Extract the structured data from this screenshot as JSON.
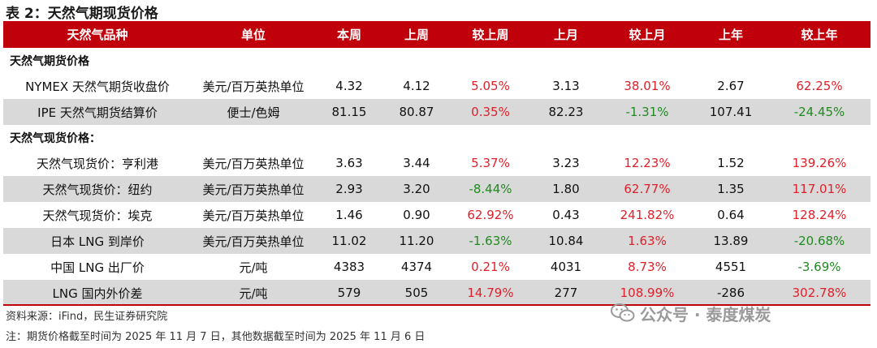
{
  "title": "表 2：天然气期现货价格",
  "columns": [
    "天然气品种",
    "单位",
    "本周",
    "上周",
    "较上周",
    "上月",
    "较上月",
    "上年",
    "较上年"
  ],
  "sections": [
    {
      "label": "天然气期货价格",
      "rows": [
        {
          "name": "NYMEX 天然气期货收盘价",
          "unit": "美元/百万英热单位",
          "this_week": "4.32",
          "last_week": "4.12",
          "wow": "5.05%",
          "last_month": "3.13",
          "mom": "38.01%",
          "last_year": "2.67",
          "yoy": "62.25%"
        },
        {
          "name": "IPE 天然气期货结算价",
          "unit": "便士/色姆",
          "this_week": "81.15",
          "last_week": "80.87",
          "wow": "0.35%",
          "last_month": "82.23",
          "mom": "-1.31%",
          "last_year": "107.41",
          "yoy": "-24.45%"
        }
      ]
    },
    {
      "label": "天然气现货价格：",
      "rows": [
        {
          "name": "天然气现货价：亨利港",
          "unit": "美元/百万英热单位",
          "this_week": "3.63",
          "last_week": "3.44",
          "wow": "5.37%",
          "last_month": "3.23",
          "mom": "12.23%",
          "last_year": "1.52",
          "yoy": "139.26%"
        },
        {
          "name": "天然气现货价：纽约",
          "unit": "美元/百万英热单位",
          "this_week": "2.93",
          "last_week": "3.20",
          "wow": "-8.44%",
          "last_month": "1.80",
          "mom": "62.77%",
          "last_year": "1.35",
          "yoy": "117.01%"
        },
        {
          "name": "天然气现货价：埃克",
          "unit": "美元/百万英热单位",
          "this_week": "1.46",
          "last_week": "0.90",
          "wow": "62.92%",
          "last_month": "0.43",
          "mom": "241.82%",
          "last_year": "0.64",
          "yoy": "128.24%"
        },
        {
          "name": "日本 LNG 到岸价",
          "unit": "美元/百万英热单位",
          "this_week": "11.02",
          "last_week": "11.20",
          "wow": "-1.63%",
          "last_month": "10.84",
          "mom": "1.63%",
          "last_year": "13.89",
          "yoy": "-20.68%"
        },
        {
          "name": "中国 LNG 出厂价",
          "unit": "元/吨",
          "this_week": "4383",
          "last_week": "4374",
          "wow": "0.21%",
          "last_month": "4031",
          "mom": "8.73%",
          "last_year": "4551",
          "yoy": "-3.69%"
        },
        {
          "name": "LNG 国内外价差",
          "unit": "元/吨",
          "this_week": "579",
          "last_week": "505",
          "wow": "14.79%",
          "last_month": "277",
          "mom": "108.99%",
          "last_year": "-286",
          "yoy": "302.78%"
        }
      ]
    }
  ],
  "source": "资料来源：iFind，民生证券研究院",
  "note": "注：期货价格截至时间为 2025 年 11 月 7 日，其他数据截至时间为 2025 年 11 月 6 日",
  "watermark": "公众号 · 泰度煤炭",
  "colors": {
    "header_bg": "#c0000a",
    "positive": "#e0202a",
    "negative": "#1f8a1f",
    "shade": "#d9d9d9"
  },
  "icons": {
    "watermark": "wechat-icon"
  }
}
